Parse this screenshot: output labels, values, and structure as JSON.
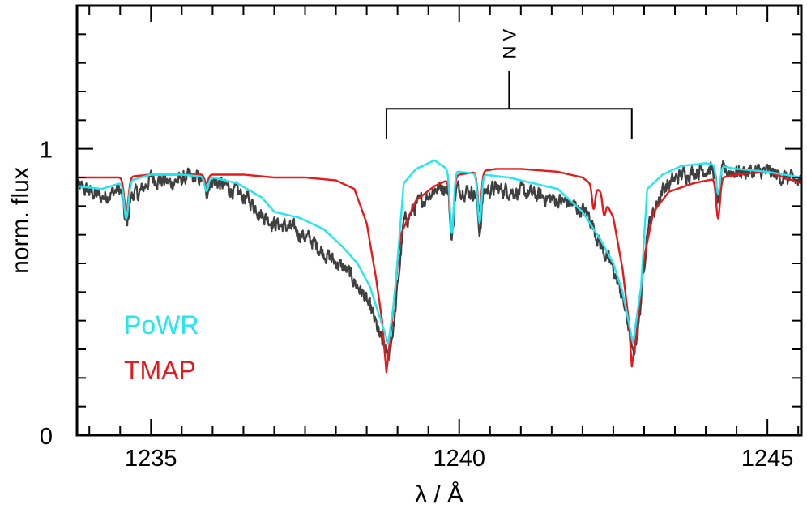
{
  "chart_data": {
    "type": "line",
    "xlabel": "λ / Å",
    "ylabel": "norm. flux",
    "xlim": [
      1233.8,
      1245.55
    ],
    "ylim": [
      0,
      1.5
    ],
    "x_ticks": [
      1235,
      1240,
      1245
    ],
    "y_ticks": [
      0,
      1
    ],
    "x_tick_labels": [
      "1235",
      "1240",
      "1245"
    ],
    "y_tick_labels": [
      "0",
      "1"
    ],
    "x_minor_step": 0.5,
    "y_minor_step": 0.1,
    "grid": false,
    "legend_placement": "bottom-left",
    "line_identification": {
      "label": "N V",
      "wavelengths": [
        1238.82,
        1242.8
      ],
      "bracket_level": 1.14
    },
    "series": [
      {
        "name": "",
        "color": "#404040",
        "role": "observation",
        "continuum": [
          [
            1233.8,
            0.87
          ],
          [
            1234.2,
            0.83
          ],
          [
            1234.5,
            0.86
          ],
          [
            1234.8,
            0.84
          ],
          [
            1235.0,
            0.9
          ],
          [
            1235.3,
            0.88
          ],
          [
            1235.6,
            0.9
          ],
          [
            1236.0,
            0.89
          ],
          [
            1236.3,
            0.86
          ],
          [
            1236.6,
            0.82
          ],
          [
            1236.8,
            0.77
          ],
          [
            1237.0,
            0.74
          ],
          [
            1237.3,
            0.72
          ],
          [
            1237.6,
            0.68
          ],
          [
            1237.9,
            0.62
          ],
          [
            1238.2,
            0.57
          ],
          [
            1238.45,
            0.49
          ],
          [
            1238.6,
            0.42
          ],
          [
            1238.7,
            0.35
          ],
          [
            1238.85,
            0.27
          ],
          [
            1238.95,
            0.4
          ],
          [
            1239.1,
            0.74
          ],
          [
            1239.3,
            0.8
          ],
          [
            1239.6,
            0.86
          ],
          [
            1239.8,
            0.87
          ],
          [
            1240.2,
            0.85
          ],
          [
            1240.6,
            0.86
          ],
          [
            1241.0,
            0.85
          ],
          [
            1241.4,
            0.83
          ],
          [
            1241.8,
            0.81
          ],
          [
            1242.1,
            0.77
          ],
          [
            1242.3,
            0.66
          ],
          [
            1242.5,
            0.58
          ],
          [
            1242.65,
            0.48
          ],
          [
            1242.75,
            0.38
          ],
          [
            1242.82,
            0.27
          ],
          [
            1242.92,
            0.4
          ],
          [
            1243.05,
            0.72
          ],
          [
            1243.3,
            0.86
          ],
          [
            1243.6,
            0.91
          ],
          [
            1244.0,
            0.93
          ],
          [
            1244.5,
            0.92
          ],
          [
            1245.0,
            0.92
          ],
          [
            1245.55,
            0.88
          ]
        ],
        "lines": [
          [
            1234.6,
            0.12,
            0.04
          ],
          [
            1235.9,
            0.04,
            0.03
          ],
          [
            1239.88,
            0.18,
            0.03
          ],
          [
            1240.33,
            0.14,
            0.03
          ],
          [
            1244.2,
            0.1,
            0.03
          ]
        ],
        "noise": 0.022
      },
      {
        "name": "PoWR",
        "color": "#22e6f0",
        "role": "model",
        "continuum": [
          [
            1233.8,
            0.87
          ],
          [
            1234.2,
            0.86
          ],
          [
            1234.5,
            0.88
          ],
          [
            1235.0,
            0.91
          ],
          [
            1235.5,
            0.91
          ],
          [
            1236.0,
            0.9
          ],
          [
            1236.4,
            0.88
          ],
          [
            1236.8,
            0.83
          ],
          [
            1237.0,
            0.78
          ],
          [
            1237.4,
            0.76
          ],
          [
            1237.8,
            0.72
          ],
          [
            1238.1,
            0.66
          ],
          [
            1238.35,
            0.6
          ],
          [
            1238.55,
            0.52
          ],
          [
            1238.7,
            0.42
          ],
          [
            1238.85,
            0.32
          ],
          [
            1238.95,
            0.48
          ],
          [
            1239.1,
            0.88
          ],
          [
            1239.3,
            0.93
          ],
          [
            1239.6,
            0.96
          ],
          [
            1239.8,
            0.93
          ],
          [
            1240.0,
            0.92
          ],
          [
            1240.4,
            0.91
          ],
          [
            1240.8,
            0.9
          ],
          [
            1241.2,
            0.88
          ],
          [
            1241.6,
            0.86
          ],
          [
            1242.0,
            0.78
          ],
          [
            1242.3,
            0.68
          ],
          [
            1242.5,
            0.6
          ],
          [
            1242.65,
            0.5
          ],
          [
            1242.82,
            0.32
          ],
          [
            1242.95,
            0.52
          ],
          [
            1243.05,
            0.86
          ],
          [
            1243.3,
            0.91
          ],
          [
            1243.6,
            0.94
          ],
          [
            1244.0,
            0.95
          ],
          [
            1244.5,
            0.93
          ],
          [
            1245.0,
            0.92
          ],
          [
            1245.55,
            0.9
          ]
        ],
        "lines": [
          [
            1234.6,
            0.13,
            0.035
          ],
          [
            1235.9,
            0.05,
            0.03
          ],
          [
            1239.88,
            0.22,
            0.03
          ],
          [
            1240.33,
            0.17,
            0.03
          ],
          [
            1244.2,
            0.1,
            0.03
          ]
        ],
        "noise": 0
      },
      {
        "name": "TMAP",
        "color": "#e41a1c",
        "role": "model",
        "continuum": [
          [
            1233.8,
            0.9
          ],
          [
            1234.5,
            0.9
          ],
          [
            1235.0,
            0.91
          ],
          [
            1235.5,
            0.91
          ],
          [
            1236.0,
            0.91
          ],
          [
            1236.5,
            0.91
          ],
          [
            1237.0,
            0.9
          ],
          [
            1237.5,
            0.9
          ],
          [
            1238.0,
            0.89
          ],
          [
            1238.3,
            0.86
          ],
          [
            1238.5,
            0.74
          ],
          [
            1238.65,
            0.55
          ],
          [
            1238.75,
            0.4
          ],
          [
            1238.82,
            0.22
          ],
          [
            1238.9,
            0.38
          ],
          [
            1239.05,
            0.7
          ],
          [
            1239.3,
            0.82
          ],
          [
            1239.6,
            0.87
          ],
          [
            1240.0,
            0.91
          ],
          [
            1240.6,
            0.93
          ],
          [
            1241.0,
            0.93
          ],
          [
            1241.6,
            0.92
          ],
          [
            1242.0,
            0.9
          ],
          [
            1242.3,
            0.85
          ],
          [
            1242.5,
            0.76
          ],
          [
            1242.65,
            0.58
          ],
          [
            1242.75,
            0.4
          ],
          [
            1242.8,
            0.24
          ],
          [
            1242.88,
            0.36
          ],
          [
            1243.0,
            0.62
          ],
          [
            1243.15,
            0.78
          ],
          [
            1243.4,
            0.85
          ],
          [
            1243.8,
            0.88
          ],
          [
            1244.5,
            0.91
          ],
          [
            1245.0,
            0.92
          ],
          [
            1245.55,
            0.88
          ]
        ],
        "lines": [
          [
            1234.6,
            0.12,
            0.035
          ],
          [
            1235.9,
            0.03,
            0.03
          ],
          [
            1239.88,
            0.19,
            0.03
          ],
          [
            1240.33,
            0.14,
            0.03
          ],
          [
            1244.2,
            0.14,
            0.03
          ],
          [
            1242.18,
            0.08,
            0.025
          ],
          [
            1242.35,
            0.06,
            0.025
          ]
        ],
        "noise": 0
      }
    ],
    "legend": [
      {
        "label": "PoWR",
        "color": "#22e6f0"
      },
      {
        "label": "TMAP",
        "color": "#e41a1c"
      }
    ]
  }
}
